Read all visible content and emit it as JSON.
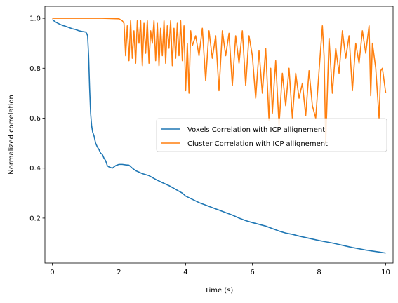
{
  "chart_data": {
    "type": "line",
    "xlabel": "Time (s)",
    "ylabel": "Normalized correlation",
    "xlim": [
      -0.22,
      10.22
    ],
    "ylim": [
      0.02,
      1.048
    ],
    "x_ticks": [
      0,
      2,
      4,
      6,
      8,
      10
    ],
    "y_ticks": [
      0.2,
      0.4,
      0.6,
      0.8,
      1.0
    ],
    "x_tick_labels": [
      "0",
      "2",
      "4",
      "6",
      "8",
      "10"
    ],
    "y_tick_labels": [
      "0.2",
      "0.4",
      "0.6",
      "0.8",
      "1.0"
    ],
    "grid": false,
    "legend_position": "center-right",
    "series": [
      {
        "name": "Voxels Correlation with ICP allignement",
        "color": "#1f77b4",
        "x": [
          0.0,
          0.1,
          0.2,
          0.3,
          0.4,
          0.5,
          0.6,
          0.7,
          0.8,
          0.9,
          1.0,
          1.03,
          1.06,
          1.09,
          1.12,
          1.15,
          1.18,
          1.21,
          1.25,
          1.3,
          1.35,
          1.4,
          1.45,
          1.5,
          1.55,
          1.6,
          1.65,
          1.7,
          1.8,
          1.9,
          2.0,
          2.1,
          2.2,
          2.3,
          2.4,
          2.5,
          2.7,
          2.9,
          3.1,
          3.3,
          3.5,
          3.7,
          3.9,
          4.0,
          4.2,
          4.4,
          4.6,
          4.8,
          5.0,
          5.2,
          5.4,
          5.6,
          5.8,
          6.0,
          6.2,
          6.4,
          6.6,
          6.8,
          7.0,
          7.2,
          7.4,
          7.6,
          7.8,
          8.0,
          8.2,
          8.4,
          8.6,
          8.8,
          9.0,
          9.2,
          9.4,
          9.6,
          9.8,
          10.0
        ],
        "y": [
          0.995,
          0.985,
          0.978,
          0.972,
          0.968,
          0.963,
          0.958,
          0.955,
          0.95,
          0.947,
          0.945,
          0.94,
          0.93,
          0.85,
          0.72,
          0.62,
          0.57,
          0.545,
          0.53,
          0.5,
          0.485,
          0.475,
          0.46,
          0.455,
          0.44,
          0.43,
          0.41,
          0.405,
          0.4,
          0.41,
          0.415,
          0.415,
          0.413,
          0.412,
          0.4,
          0.39,
          0.378,
          0.37,
          0.355,
          0.342,
          0.33,
          0.315,
          0.3,
          0.288,
          0.275,
          0.262,
          0.252,
          0.242,
          0.232,
          0.222,
          0.212,
          0.2,
          0.19,
          0.182,
          0.175,
          0.168,
          0.158,
          0.148,
          0.14,
          0.135,
          0.128,
          0.122,
          0.116,
          0.11,
          0.105,
          0.1,
          0.094,
          0.088,
          0.082,
          0.077,
          0.072,
          0.068,
          0.064,
          0.06
        ]
      },
      {
        "name": "Cluster Correlation with ICP allignement",
        "color": "#ff7f0e",
        "x": [
          0.0,
          0.5,
          1.0,
          1.5,
          2.0,
          2.1,
          2.15,
          2.2,
          2.25,
          2.3,
          2.35,
          2.4,
          2.45,
          2.5,
          2.55,
          2.6,
          2.65,
          2.7,
          2.75,
          2.8,
          2.85,
          2.9,
          2.95,
          3.0,
          3.05,
          3.1,
          3.15,
          3.2,
          3.25,
          3.3,
          3.35,
          3.4,
          3.45,
          3.5,
          3.55,
          3.6,
          3.65,
          3.7,
          3.75,
          3.8,
          3.85,
          3.9,
          3.95,
          4.0,
          4.05,
          4.1,
          4.15,
          4.2,
          4.3,
          4.4,
          4.5,
          4.6,
          4.7,
          4.8,
          4.9,
          5.0,
          5.1,
          5.2,
          5.3,
          5.4,
          5.5,
          5.6,
          5.7,
          5.8,
          5.9,
          6.0,
          6.1,
          6.2,
          6.3,
          6.4,
          6.5,
          6.55,
          6.6,
          6.65,
          6.7,
          6.8,
          6.9,
          7.0,
          7.1,
          7.2,
          7.3,
          7.4,
          7.5,
          7.6,
          7.7,
          7.8,
          7.9,
          8.0,
          8.1,
          8.15,
          8.2,
          8.3,
          8.4,
          8.5,
          8.6,
          8.7,
          8.8,
          8.9,
          9.0,
          9.1,
          9.2,
          9.3,
          9.4,
          9.5,
          9.55,
          9.6,
          9.7,
          9.8,
          9.85,
          9.9,
          10.0
        ],
        "y": [
          1.0,
          1.0,
          1.0,
          1.0,
          0.998,
          0.99,
          0.98,
          0.85,
          0.97,
          0.83,
          0.99,
          0.84,
          0.95,
          0.82,
          0.99,
          0.9,
          0.99,
          0.81,
          0.98,
          0.86,
          0.99,
          0.82,
          0.95,
          0.9,
          0.99,
          0.83,
          0.98,
          0.81,
          0.96,
          0.85,
          0.99,
          0.82,
          0.97,
          0.88,
          0.99,
          0.81,
          0.96,
          0.84,
          0.98,
          0.85,
          0.99,
          0.83,
          0.97,
          0.71,
          0.9,
          0.7,
          0.95,
          0.89,
          0.93,
          0.85,
          0.96,
          0.75,
          0.95,
          0.84,
          0.93,
          0.71,
          0.95,
          0.85,
          0.94,
          0.73,
          0.93,
          0.82,
          0.95,
          0.73,
          0.93,
          0.85,
          0.68,
          0.87,
          0.7,
          0.88,
          0.59,
          0.8,
          0.62,
          0.73,
          0.83,
          0.57,
          0.78,
          0.65,
          0.8,
          0.6,
          0.78,
          0.68,
          0.74,
          0.61,
          0.79,
          0.65,
          0.6,
          0.79,
          0.97,
          0.85,
          0.5,
          0.92,
          0.7,
          0.88,
          0.78,
          0.95,
          0.84,
          0.93,
          0.71,
          0.9,
          0.82,
          0.95,
          0.86,
          0.97,
          0.69,
          0.9,
          0.8,
          0.6,
          0.79,
          0.8,
          0.7
        ]
      }
    ]
  }
}
